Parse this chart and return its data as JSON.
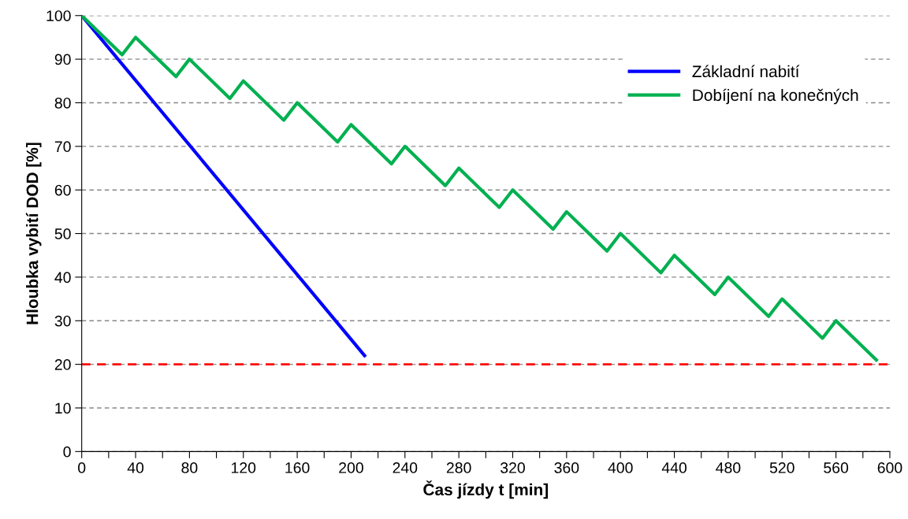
{
  "chart_data": {
    "type": "line",
    "xlabel": "Čas jízdy t [min]",
    "ylabel": "Hloubka vybití DOD [%]",
    "xlim": [
      0,
      600
    ],
    "ylim": [
      0,
      100
    ],
    "xticks": [
      0,
      {
        "value": 20,
        "label": null
      },
      40,
      {
        "value": 60,
        "label": null
      },
      80,
      {
        "value": 100,
        "label": null
      },
      120,
      {
        "value": 140,
        "label": null
      },
      160,
      {
        "value": 180,
        "label": null
      },
      200,
      {
        "value": 220,
        "label": null
      },
      240,
      {
        "value": 260,
        "label": null
      },
      280,
      {
        "value": 300,
        "label": null
      },
      320,
      {
        "value": 340,
        "label": null
      },
      360,
      {
        "value": 380,
        "label": null
      },
      400,
      {
        "value": 420,
        "label": null
      },
      440,
      {
        "value": 460,
        "label": null
      },
      480,
      {
        "value": 500,
        "label": null
      },
      520,
      {
        "value": 540,
        "label": null
      },
      560,
      {
        "value": 580,
        "label": null
      },
      600
    ],
    "yticks": [
      0,
      10,
      20,
      30,
      40,
      50,
      60,
      70,
      80,
      90,
      100
    ],
    "grid": "y",
    "legend": "top right",
    "marker": "none",
    "line_style": "solid",
    "series": [
      {
        "name": "Základní nabití",
        "color": "#0000ff",
        "x": [
          0,
          210
        ],
        "values": [
          100,
          22
        ]
      },
      {
        "name": "Dobíjení na konečných",
        "color": "#00b050",
        "x": [
          0,
          30,
          40,
          70,
          80,
          110,
          120,
          150,
          160,
          190,
          200,
          230,
          240,
          270,
          280,
          310,
          320,
          350,
          360,
          390,
          400,
          430,
          440,
          470,
          480,
          510,
          520,
          550,
          560,
          590
        ],
        "values": [
          100,
          91,
          95,
          86,
          90,
          81,
          85,
          76,
          80,
          71,
          75,
          66,
          70,
          61,
          65,
          56,
          60,
          51,
          55,
          46,
          50,
          41,
          45,
          36,
          40,
          31,
          35,
          26,
          30,
          21
        ]
      }
    ],
    "ref_lines": [
      {
        "axis": "y",
        "value": 20,
        "color": "#ff0000",
        "line_style": "dashed"
      }
    ]
  }
}
